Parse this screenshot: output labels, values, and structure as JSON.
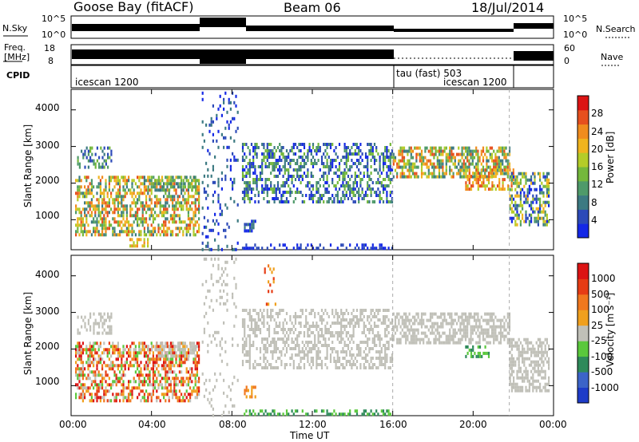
{
  "header": {
    "station": "Goose Bay (fitACF)",
    "beam": "Beam 06",
    "date": "18/Jul/2014"
  },
  "panels": {
    "nsky_label": "N.Sky",
    "nsky_ticks": [
      "10^5",
      "10^0"
    ],
    "nsearch_label": "N.Search",
    "freq_label_1": "Freq.",
    "freq_label_2": "[MHz]",
    "freq_ticks": [
      "18",
      "8"
    ],
    "nave_label": "Nave",
    "nave_ticks": [
      "60",
      "0"
    ],
    "cpid_label": "CPID",
    "cpid_modes": [
      "icescan 1200",
      "tau (fast) 503",
      "icescan 1200"
    ]
  },
  "chart_data": [
    {
      "type": "heatmap",
      "title": "",
      "ylabel": "Slant Range [km]",
      "xlabel": "Time UT",
      "x_ticks": [
        "00:00",
        "04:00",
        "08:00",
        "12:00",
        "16:00",
        "20:00",
        "00:00"
      ],
      "y_ticks": [
        "1000",
        "2000",
        "3000",
        "4000"
      ],
      "colorbar_label": "Power [dB]",
      "colorbar_ticks": [
        "4",
        "8",
        "12",
        "16",
        "20",
        "24",
        "28"
      ],
      "colorbar_colors": [
        "#1428e6",
        "#2c4ab8",
        "#3c7a82",
        "#4f9a6a",
        "#74b83c",
        "#b4cc28",
        "#f0b41e",
        "#f08c1e",
        "#e6501e",
        "#dc1414"
      ]
    },
    {
      "type": "heatmap",
      "title": "",
      "ylabel": "Slant Range [km]",
      "xlabel": "Time UT",
      "x_ticks": [
        "00:00",
        "04:00",
        "08:00",
        "12:00",
        "16:00",
        "20:00",
        "00:00"
      ],
      "y_ticks": [
        "1000",
        "2000",
        "3000",
        "4000"
      ],
      "colorbar_label": "Velocity [m s⁻¹]",
      "colorbar_ticks": [
        "1000",
        "500",
        "100",
        "25",
        "-25",
        "-100",
        "-500",
        "-1000"
      ],
      "colorbar_colors": [
        "#1e3cc8",
        "#3c64c8",
        "#2e8a5a",
        "#5ac83c",
        "#c0c0b8",
        "#f0a01e",
        "#f0781e",
        "#e63c14",
        "#dc1414"
      ]
    }
  ],
  "x_axis_title": "Time UT"
}
